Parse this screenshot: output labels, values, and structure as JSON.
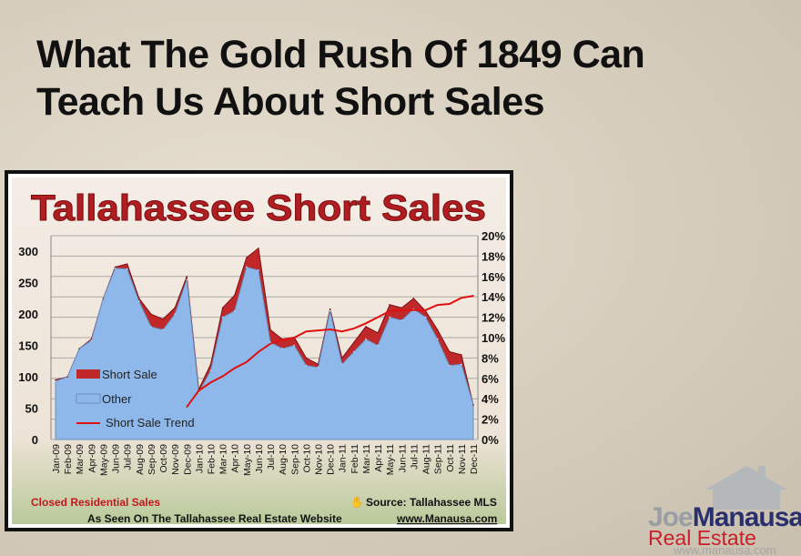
{
  "headline": {
    "line1": "What The Gold Rush Of 1849 Can",
    "line2": "Teach Us About Short Sales"
  },
  "chart_data": {
    "type": "area",
    "title": "Tallahassee Short Sales",
    "categories": [
      "Jan-09",
      "Feb-09",
      "Mar-09",
      "Apr-09",
      "May-09",
      "Jun-09",
      "Jul-09",
      "Aug-09",
      "Sep-09",
      "Oct-09",
      "Nov-09",
      "Dec-09",
      "Jan-10",
      "Feb-10",
      "Mar-10",
      "Apr-10",
      "May-10",
      "Jun-10",
      "Jul-10",
      "Aug-10",
      "Sep-10",
      "Oct-10",
      "Nov-10",
      "Dec-10",
      "Jan-11",
      "Feb-11",
      "Mar-11",
      "Apr-11",
      "May-11",
      "Jun-11",
      "Jul-11",
      "Aug-11",
      "Sep-11",
      "Oct-11",
      "Nov-11",
      "Dec-11"
    ],
    "stacked": true,
    "series": [
      {
        "name": "Other",
        "axis": "left",
        "color": "#8fb8ea",
        "values": [
          93,
          100,
          145,
          158,
          225,
          273,
          272,
          220,
          180,
          175,
          200,
          255,
          75,
          110,
          195,
          205,
          275,
          270,
          155,
          145,
          150,
          118,
          115,
          205,
          120,
          140,
          160,
          150,
          195,
          190,
          208,
          195,
          160,
          118,
          120,
          55
        ]
      },
      {
        "name": "Short Sale",
        "axis": "left",
        "color": "#c0282a",
        "values": [
          2,
          0,
          0,
          2,
          0,
          2,
          8,
          5,
          20,
          17,
          10,
          5,
          5,
          10,
          15,
          25,
          15,
          35,
          20,
          15,
          13,
          12,
          5,
          3,
          10,
          15,
          20,
          20,
          20,
          20,
          17,
          10,
          15,
          22,
          15,
          0
        ]
      },
      {
        "name": "Short Sale Trend",
        "axis": "right",
        "type": "line",
        "color": "#e01010",
        "values": [
          null,
          null,
          null,
          null,
          null,
          null,
          null,
          null,
          null,
          null,
          null,
          3.2,
          4.8,
          5.6,
          6.2,
          7.0,
          7.6,
          8.6,
          9.4,
          9.8,
          10.0,
          10.6,
          10.7,
          10.8,
          10.6,
          10.9,
          11.4,
          12.0,
          12.6,
          12.7,
          12.7,
          12.7,
          13.2,
          13.3,
          13.9,
          14.1
        ]
      }
    ],
    "left_axis": {
      "ticks": [
        "0",
        "50",
        "100",
        "150",
        "200",
        "250",
        "300"
      ],
      "ylim": [
        0,
        325
      ]
    },
    "right_axis": {
      "ticks": [
        "0%",
        "2%",
        "4%",
        "6%",
        "8%",
        "10%",
        "12%",
        "14%",
        "16%",
        "18%",
        "20%"
      ],
      "ylim": [
        0,
        20
      ]
    },
    "grid": true,
    "legend_position": "lower-left",
    "footer_left": "Closed Residential Sales",
    "footer_source": "Source: Tallahassee MLS",
    "footer_bottom_text": "As Seen On The Tallahassee Real Estate Website",
    "footer_bottom_link": "www.Manausa.com"
  },
  "logo": {
    "joe": "Joe",
    "manausa": "Manausa",
    "real_estate": "Real Estate",
    "url": "www.manausa.com"
  }
}
